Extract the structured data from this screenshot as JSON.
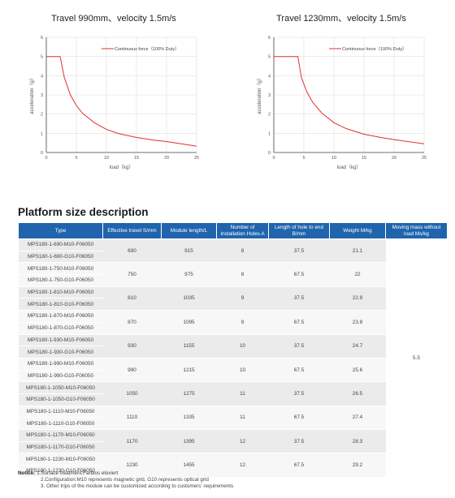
{
  "charts": [
    {
      "title": "Travel 990mm、velocity 1.5m/s",
      "legend": "Continuous force（100% Duty）",
      "chart_data": {
        "type": "line",
        "title": "Travel 990mm、velocity 1.5m/s",
        "xlabel": "load（kg）",
        "ylabel": "acceleration（g）",
        "xlim": [
          0,
          25
        ],
        "ylim": [
          0,
          6
        ],
        "xticks": [
          0,
          5,
          10,
          15,
          20,
          25
        ],
        "yticks": [
          0,
          1,
          2,
          3,
          4,
          5,
          6
        ],
        "grid": true,
        "legend_position": "top-right",
        "series": [
          {
            "name": "Continuous force（100% Duty）",
            "x": [
              0,
              2.3,
              3,
              4,
              5,
              6,
              8,
              10,
              12,
              15,
              18,
              20,
              25
            ],
            "y": [
              5,
              5,
              3.9,
              3.0,
              2.45,
              2.05,
              1.55,
              1.2,
              0.99,
              0.78,
              0.64,
              0.57,
              0.33
            ]
          }
        ]
      }
    },
    {
      "title": "Travel 1230mm、velocity 1.5m/s",
      "legend": "Continuous force（100% Duty）",
      "chart_data": {
        "type": "line",
        "title": "Travel 1230mm、velocity 1.5m/s",
        "xlabel": "load（kg）",
        "ylabel": "acceleration（g）",
        "xlim": [
          0,
          25
        ],
        "ylim": [
          0,
          6
        ],
        "xticks": [
          0,
          5,
          10,
          15,
          20,
          25
        ],
        "yticks": [
          0,
          1,
          2,
          3,
          4,
          5,
          6
        ],
        "grid": true,
        "legend_position": "top-right",
        "series": [
          {
            "name": "Continuous force（100% Duty）",
            "x": [
              0,
              4,
              4.6,
              5.5,
              6.5,
              8,
              10,
              12,
              15,
              18,
              20,
              25
            ],
            "y": [
              5,
              5,
              3.9,
              3.15,
              2.6,
              2.05,
              1.55,
              1.25,
              0.95,
              0.77,
              0.67,
              0.45
            ]
          }
        ]
      }
    }
  ],
  "section_title": "Platform size description",
  "table": {
    "headers": [
      "Type",
      "Effective travel S/mm",
      "Module length/L",
      "Number of Installation Holes A",
      "Length of hole to end B/mm",
      "Weight M/kg",
      "Moving mass without load Ms/kg"
    ],
    "common_moving_mass": "5.5",
    "groups": [
      {
        "types": [
          "MPS180-1-690-M10-F06050",
          "MPS180-1-690-G10-F06050"
        ],
        "travel": "690",
        "length": "915",
        "holes": "8",
        "hole_end": "37.5",
        "weight": "21.1"
      },
      {
        "types": [
          "MPS180-1-750-M10-F06050",
          "MPS180-1-750-G10-F06050"
        ],
        "travel": "750",
        "length": "975",
        "holes": "8",
        "hole_end": "67.5",
        "weight": "22"
      },
      {
        "types": [
          "MPS180-1-810-M10-F06050",
          "MPS180-1-810-G10-F06050"
        ],
        "travel": "810",
        "length": "1035",
        "holes": "9",
        "hole_end": "37.5",
        "weight": "22.9"
      },
      {
        "types": [
          "MPS180-1-870-M10-F06050",
          "MPS180-1-870-G10-F06050"
        ],
        "travel": "870",
        "length": "1095",
        "holes": "9",
        "hole_end": "67.5",
        "weight": "23.8"
      },
      {
        "types": [
          "MPS180-1-930-M10-F06050",
          "MPS180-1-930-G10-F06050"
        ],
        "travel": "930",
        "length": "1155",
        "holes": "10",
        "hole_end": "37.5",
        "weight": "24.7"
      },
      {
        "types": [
          "MPS180-1-990-M10-F06050",
          "MPS180-1-990-G10-F06050"
        ],
        "travel": "990",
        "length": "1215",
        "holes": "10",
        "hole_end": "67.5",
        "weight": "25.6"
      },
      {
        "types": [
          "MPS180-1-1050-M10-F06050",
          "MPS180-1-1050-G10-F06050"
        ],
        "travel": "1050",
        "length": "1275",
        "holes": "11",
        "hole_end": "37.5",
        "weight": "26.5"
      },
      {
        "types": [
          "MPS180-1-1110-M10-F06050",
          "MPS180-1-1110-G10-F06050"
        ],
        "travel": "1110",
        "length": "1335",
        "holes": "11",
        "hole_end": "67.5",
        "weight": "27.4"
      },
      {
        "types": [
          "MPS180-1-1170-M10-F06050",
          "MPS180-1-1170-G10-F06050"
        ],
        "travel": "1170",
        "length": "1395",
        "holes": "12",
        "hole_end": "37.5",
        "weight": "28.3"
      },
      {
        "types": [
          "MPS180-1-1230-M10-F06050",
          "MPS180-1-1230-G10-F06050"
        ],
        "travel": "1230",
        "length": "1455",
        "holes": "12",
        "hole_end": "67.5",
        "weight": "29.2"
      }
    ]
  },
  "notice": {
    "label": "Notice:",
    "items": [
      "1.Surface treatment:Farblos eloxiert",
      "2.Configuration:M10 represents magnetic grid, G10 represents optical grid",
      "3. Other trips of the module can be customized according to customers' requirements"
    ]
  },
  "colors": {
    "header_bg": "#1f64ad",
    "curve": "#e03030",
    "row_shade": "#ebebeb"
  }
}
